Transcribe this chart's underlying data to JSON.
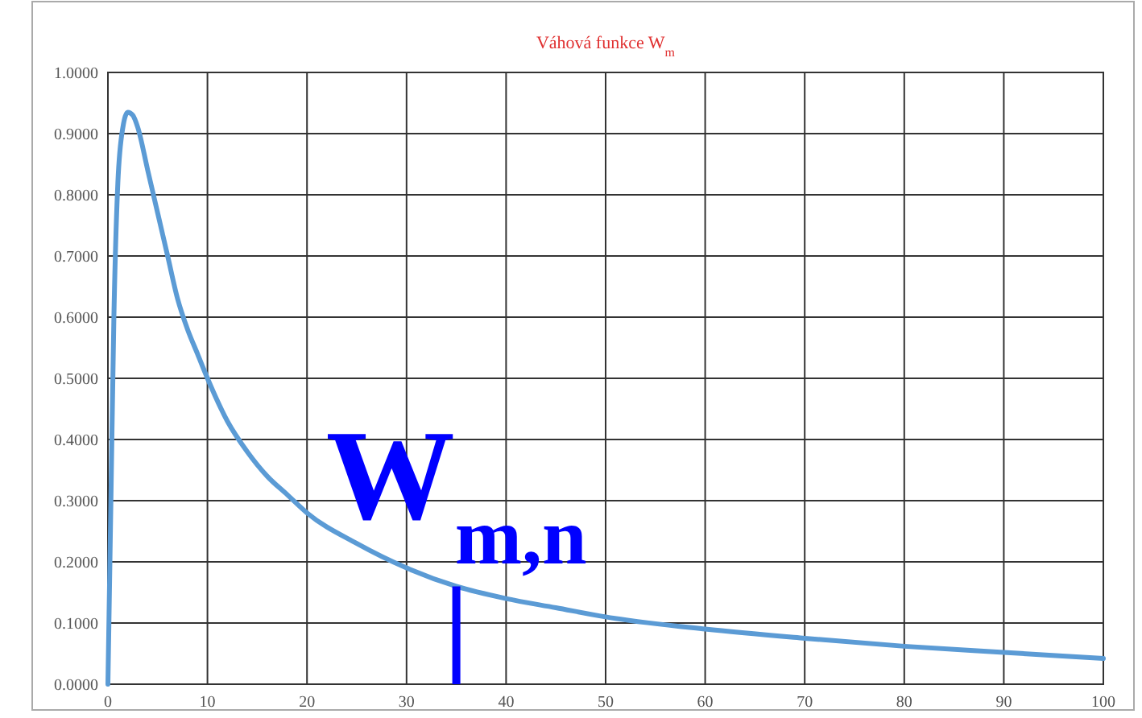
{
  "chart_data": {
    "type": "line",
    "title": "Váhová funkce W$_{m}$",
    "x": [
      0,
      0.3,
      0.6,
      1,
      1.5,
      2,
      2.5,
      3,
      4,
      5,
      6,
      7,
      8,
      9,
      10,
      12,
      14,
      16,
      18,
      20,
      25,
      30,
      35,
      40,
      45,
      50,
      60,
      70,
      80,
      90,
      100
    ],
    "series": [
      {
        "color": "#5b9bd5",
        "values": [
          0,
          0.3,
          0.6,
          0.82,
          0.91,
          0.935,
          0.93,
          0.91,
          0.84,
          0.77,
          0.7,
          0.63,
          0.58,
          0.54,
          0.5,
          0.43,
          0.38,
          0.34,
          0.31,
          0.28,
          0.23,
          0.19,
          0.16,
          0.14,
          0.125,
          0.11,
          0.09,
          0.075,
          0.062,
          0.052,
          0.042
        ]
      }
    ],
    "xlim": [
      0,
      100
    ],
    "xticks": [
      0,
      10,
      20,
      30,
      40,
      50,
      60,
      70,
      80,
      90,
      100
    ],
    "ylim": [
      0,
      1
    ],
    "yticks": [
      {
        "value": 0,
        "label": "0.0000"
      },
      {
        "value": 0.1,
        "label": "0.1000"
      },
      {
        "value": 0.2,
        "label": "0.2000"
      },
      {
        "value": 0.3,
        "label": "0.3000"
      },
      {
        "value": 0.4,
        "label": "0.4000"
      },
      {
        "value": 0.5,
        "label": "0.5000"
      },
      {
        "value": 0.6,
        "label": "0.6000"
      },
      {
        "value": 0.7,
        "label": "0.7000"
      },
      {
        "value": 0.8,
        "label": "0.8000"
      },
      {
        "value": 0.9,
        "label": "0.9000"
      },
      {
        "value": 1,
        "label": "1.0000"
      }
    ],
    "grid": true,
    "marker": "none",
    "line_style": "solid",
    "annotations": [
      {
        "text": "W$_{m,n}$",
        "x": 35,
        "y": 0.16
      }
    ]
  }
}
